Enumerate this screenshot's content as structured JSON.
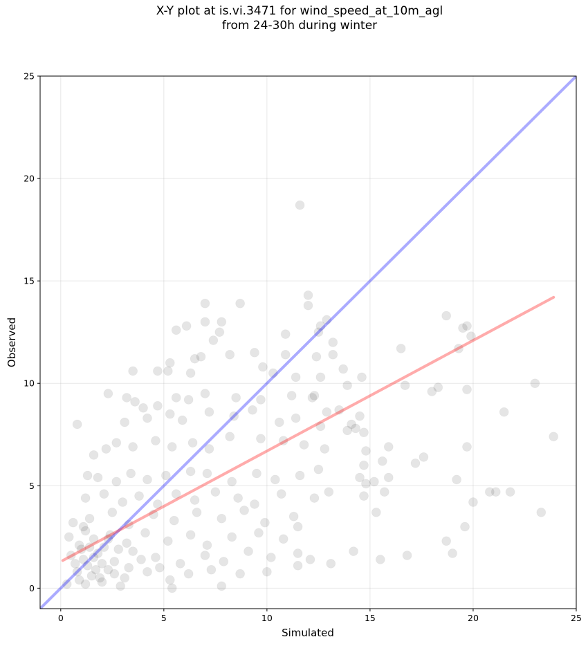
{
  "title": {
    "line1": "X-Y plot at is.vi.3471 for wind_speed_at_10m_agl",
    "line2": "from 24-30h during winter"
  },
  "chart_data": {
    "type": "scatter",
    "xlabel": "Simulated",
    "ylabel": "Observed",
    "xlim": [
      -1,
      25
    ],
    "ylim": [
      -1,
      25
    ],
    "xticks": [
      0,
      5,
      10,
      15,
      20,
      25
    ],
    "yticks": [
      0,
      5,
      10,
      15,
      20,
      25
    ],
    "grid": true,
    "point_color": "#000000",
    "identity_line": {
      "x": [
        -1,
        25
      ],
      "y": [
        -1,
        25
      ],
      "color": "#0000ff"
    },
    "regression_line": {
      "x": [
        0.1,
        23.9
      ],
      "y": [
        1.35,
        14.2
      ],
      "color": "#ff0000"
    },
    "points": [
      [
        11.6,
        18.7
      ],
      [
        12.0,
        14.3
      ],
      [
        12.0,
        13.8
      ],
      [
        7.0,
        13.9
      ],
      [
        8.7,
        13.9
      ],
      [
        7.0,
        13.0
      ],
      [
        7.8,
        13.0
      ],
      [
        12.9,
        13.1
      ],
      [
        12.6,
        12.8
      ],
      [
        6.1,
        12.8
      ],
      [
        5.6,
        12.6
      ],
      [
        7.7,
        12.5
      ],
      [
        10.9,
        12.4
      ],
      [
        12.5,
        12.5
      ],
      [
        7.4,
        12.1
      ],
      [
        13.2,
        12.0
      ],
      [
        9.4,
        11.5
      ],
      [
        6.8,
        11.3
      ],
      [
        6.5,
        11.2
      ],
      [
        10.9,
        11.4
      ],
      [
        12.4,
        11.3
      ],
      [
        8.2,
        11.4
      ],
      [
        3.5,
        10.6
      ],
      [
        4.7,
        10.6
      ],
      [
        5.2,
        10.6
      ],
      [
        6.3,
        10.5
      ],
      [
        10.3,
        10.5
      ],
      [
        11.4,
        10.3
      ],
      [
        12.6,
        10.3
      ],
      [
        13.7,
        10.7
      ],
      [
        5.3,
        11.0
      ],
      [
        9.8,
        10.8
      ],
      [
        2.3,
        9.5
      ],
      [
        3.2,
        9.3
      ],
      [
        3.6,
        9.1
      ],
      [
        4.0,
        8.8
      ],
      [
        4.7,
        8.9
      ],
      [
        5.6,
        9.3
      ],
      [
        6.2,
        9.2
      ],
      [
        7.0,
        9.5
      ],
      [
        8.5,
        9.3
      ],
      [
        9.7,
        9.2
      ],
      [
        11.2,
        9.4
      ],
      [
        12.2,
        9.3
      ],
      [
        0.8,
        8.0
      ],
      [
        3.1,
        8.1
      ],
      [
        4.2,
        8.3
      ],
      [
        5.3,
        8.5
      ],
      [
        5.9,
        8.2
      ],
      [
        7.2,
        8.6
      ],
      [
        8.4,
        8.4
      ],
      [
        9.3,
        8.7
      ],
      [
        10.6,
        8.1
      ],
      [
        11.4,
        8.3
      ],
      [
        12.6,
        7.9
      ],
      [
        14.1,
        8.0
      ],
      [
        14.5,
        8.4
      ],
      [
        1.6,
        6.5
      ],
      [
        2.2,
        6.8
      ],
      [
        2.7,
        7.1
      ],
      [
        3.5,
        6.9
      ],
      [
        4.6,
        7.2
      ],
      [
        5.4,
        6.9
      ],
      [
        6.4,
        7.1
      ],
      [
        7.2,
        6.8
      ],
      [
        8.2,
        7.4
      ],
      [
        9.7,
        7.3
      ],
      [
        10.8,
        7.2
      ],
      [
        11.8,
        7.0
      ],
      [
        12.8,
        6.8
      ],
      [
        14.7,
        7.6
      ],
      [
        13.9,
        7.7
      ],
      [
        1.3,
        5.5
      ],
      [
        1.8,
        5.4
      ],
      [
        2.7,
        5.2
      ],
      [
        3.4,
        5.6
      ],
      [
        4.2,
        5.3
      ],
      [
        5.1,
        5.5
      ],
      [
        6.3,
        5.7
      ],
      [
        7.1,
        5.6
      ],
      [
        8.3,
        5.2
      ],
      [
        9.5,
        5.6
      ],
      [
        10.4,
        5.3
      ],
      [
        11.6,
        5.5
      ],
      [
        12.5,
        5.8
      ],
      [
        1.2,
        4.4
      ],
      [
        2.1,
        4.6
      ],
      [
        3.0,
        4.2
      ],
      [
        3.8,
        4.5
      ],
      [
        4.7,
        4.1
      ],
      [
        5.6,
        4.6
      ],
      [
        6.5,
        4.3
      ],
      [
        7.5,
        4.7
      ],
      [
        8.6,
        4.4
      ],
      [
        9.4,
        4.1
      ],
      [
        10.7,
        4.6
      ],
      [
        12.3,
        4.4
      ],
      [
        13.0,
        4.7
      ],
      [
        0.6,
        3.2
      ],
      [
        1.4,
        3.4
      ],
      [
        2.5,
        3.7
      ],
      [
        3.3,
        3.1
      ],
      [
        4.5,
        3.6
      ],
      [
        5.5,
        3.3
      ],
      [
        6.6,
        3.7
      ],
      [
        7.8,
        3.4
      ],
      [
        8.9,
        3.8
      ],
      [
        9.9,
        3.2
      ],
      [
        11.3,
        3.5
      ],
      [
        11.5,
        3.0
      ],
      [
        0.4,
        2.5
      ],
      [
        0.9,
        2.1
      ],
      [
        1.6,
        2.4
      ],
      [
        2.4,
        2.6
      ],
      [
        3.2,
        2.2
      ],
      [
        4.1,
        2.7
      ],
      [
        5.2,
        2.3
      ],
      [
        6.3,
        2.6
      ],
      [
        7.1,
        2.1
      ],
      [
        8.3,
        2.5
      ],
      [
        9.6,
        2.7
      ],
      [
        10.8,
        2.4
      ],
      [
        0.5,
        1.6
      ],
      [
        1.1,
        1.4
      ],
      [
        1.8,
        1.7
      ],
      [
        2.6,
        1.3
      ],
      [
        3.5,
        1.8
      ],
      [
        4.6,
        1.5
      ],
      [
        5.8,
        1.2
      ],
      [
        7.0,
        1.6
      ],
      [
        7.9,
        1.3
      ],
      [
        9.1,
        1.8
      ],
      [
        10.2,
        1.5
      ],
      [
        11.5,
        1.7
      ],
      [
        12.1,
        1.4
      ],
      [
        0.8,
        0.8
      ],
      [
        1.5,
        0.6
      ],
      [
        2.3,
        0.9
      ],
      [
        3.1,
        0.5
      ],
      [
        4.2,
        0.8
      ],
      [
        5.3,
        0.4
      ],
      [
        6.2,
        0.7
      ],
      [
        7.3,
        0.9
      ],
      [
        8.7,
        0.7
      ],
      [
        10.0,
        0.8
      ],
      [
        11.5,
        1.1
      ],
      [
        0.3,
        0.2
      ],
      [
        1.2,
        0.2
      ],
      [
        2.0,
        0.3
      ],
      [
        2.9,
        0.1
      ],
      [
        5.4,
        0.0
      ],
      [
        7.8,
        0.1
      ],
      [
        1.0,
        1.9
      ],
      [
        1.3,
        1.1
      ],
      [
        1.7,
        0.9
      ],
      [
        2.0,
        1.2
      ],
      [
        1.4,
        2.0
      ],
      [
        2.1,
        2.0
      ],
      [
        0.7,
        1.2
      ],
      [
        1.9,
        0.5
      ],
      [
        2.6,
        0.7
      ],
      [
        1.2,
        2.8
      ],
      [
        2.3,
        2.4
      ],
      [
        1.6,
        1.5
      ],
      [
        0.9,
        0.4
      ],
      [
        2.8,
        1.9
      ],
      [
        3.3,
        1.0
      ],
      [
        3.9,
        1.4
      ],
      [
        4.8,
        1.0
      ],
      [
        1.1,
        3.0
      ],
      [
        13.2,
        11.4
      ],
      [
        12.3,
        9.4
      ],
      [
        12.9,
        8.6
      ],
      [
        13.5,
        8.7
      ],
      [
        14.6,
        10.3
      ],
      [
        13.9,
        9.9
      ],
      [
        14.3,
        7.8
      ],
      [
        14.8,
        6.7
      ],
      [
        14.7,
        6.0
      ],
      [
        14.5,
        5.4
      ],
      [
        14.8,
        5.1
      ],
      [
        14.7,
        4.5
      ],
      [
        15.2,
        5.2
      ],
      [
        15.7,
        4.7
      ],
      [
        15.9,
        5.4
      ],
      [
        15.6,
        6.2
      ],
      [
        15.5,
        1.4
      ],
      [
        15.3,
        3.7
      ],
      [
        16.8,
        1.6
      ],
      [
        13.1,
        1.2
      ],
      [
        14.2,
        1.8
      ],
      [
        15.9,
        6.9
      ],
      [
        16.7,
        9.9
      ],
      [
        17.2,
        6.1
      ],
      [
        17.6,
        6.4
      ],
      [
        18.0,
        9.6
      ],
      [
        18.3,
        9.8
      ],
      [
        16.5,
        11.7
      ],
      [
        18.7,
        13.3
      ],
      [
        19.3,
        11.7
      ],
      [
        19.5,
        12.7
      ],
      [
        19.7,
        12.8
      ],
      [
        19.9,
        12.3
      ],
      [
        19.7,
        9.7
      ],
      [
        19.7,
        6.9
      ],
      [
        19.2,
        5.3
      ],
      [
        20.0,
        4.2
      ],
      [
        18.7,
        2.3
      ],
      [
        19.0,
        1.7
      ],
      [
        19.6,
        3.0
      ],
      [
        20.8,
        4.7
      ],
      [
        21.1,
        4.7
      ],
      [
        21.5,
        8.6
      ],
      [
        21.8,
        4.7
      ],
      [
        23.0,
        10.0
      ],
      [
        23.3,
        3.7
      ],
      [
        23.9,
        7.4
      ]
    ]
  }
}
